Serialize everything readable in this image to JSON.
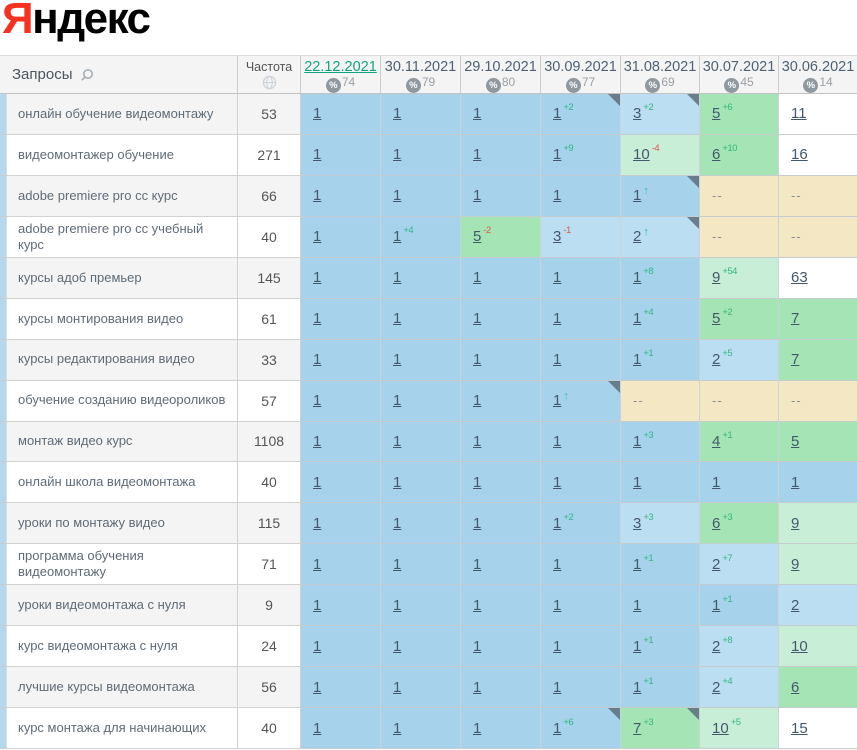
{
  "logo": {
    "first_letter": "Я",
    "rest": "ндекс"
  },
  "colors": {
    "brand_red": "#f5321f",
    "selected_date": "#12a27e",
    "pos_1_bg": "#a6d2ec",
    "pos_2_3_bg": "#bcdef3",
    "pos_4_7_bg": "#a5e4b5",
    "pos_8_10_bg": "#c9eed8",
    "pos_11_plus_bg": "#ffffff",
    "not_ranked_bg": "#f4e7c3",
    "change_up": "#2fb87c",
    "change_down": "#e0564b",
    "entered_arrow": "#2cc0a8"
  },
  "header": {
    "queries_label": "Запросы",
    "frequency_label": "Частота",
    "dates": [
      {
        "label": "22.12.2021",
        "count": "74",
        "selected": true
      },
      {
        "label": "30.11.2021",
        "count": "79",
        "selected": false
      },
      {
        "label": "29.10.2021",
        "count": "80",
        "selected": false
      },
      {
        "label": "30.09.2021",
        "count": "77",
        "selected": false
      },
      {
        "label": "31.08.2021",
        "count": "69",
        "selected": false
      },
      {
        "label": "30.07.2021",
        "count": "45",
        "selected": false
      },
      {
        "label": "30.06.2021",
        "count": "14",
        "selected": false
      }
    ]
  },
  "rows": [
    {
      "query": "онлайн обучение видеомонтажу",
      "frequency": "53",
      "cells": [
        {
          "pos": "1"
        },
        {
          "pos": "1"
        },
        {
          "pos": "1"
        },
        {
          "pos": "1",
          "change": "+2",
          "note": true
        },
        {
          "pos": "3",
          "change": "+2",
          "note": true
        },
        {
          "pos": "5",
          "change": "+6"
        },
        {
          "pos": "11"
        }
      ]
    },
    {
      "query": "видеомонтажер обучение",
      "frequency": "271",
      "cells": [
        {
          "pos": "1"
        },
        {
          "pos": "1"
        },
        {
          "pos": "1"
        },
        {
          "pos": "1",
          "change": "+9"
        },
        {
          "pos": "10",
          "change": "-4"
        },
        {
          "pos": "6",
          "change": "+10"
        },
        {
          "pos": "16"
        }
      ]
    },
    {
      "query": "adobe premiere pro cc курс",
      "frequency": "66",
      "cells": [
        {
          "pos": "1"
        },
        {
          "pos": "1"
        },
        {
          "pos": "1"
        },
        {
          "pos": "1"
        },
        {
          "pos": "1",
          "entered": true,
          "note": true
        },
        {
          "pos": "--"
        },
        {
          "pos": "--"
        }
      ]
    },
    {
      "query": "adobe premiere pro cc учебный курс",
      "frequency": "40",
      "cells": [
        {
          "pos": "1"
        },
        {
          "pos": "1",
          "change": "+4"
        },
        {
          "pos": "5",
          "change": "-2"
        },
        {
          "pos": "3",
          "change": "-1"
        },
        {
          "pos": "2",
          "entered": true,
          "note": true
        },
        {
          "pos": "--"
        },
        {
          "pos": "--"
        }
      ]
    },
    {
      "query": "курсы адоб премьер",
      "frequency": "145",
      "cells": [
        {
          "pos": "1"
        },
        {
          "pos": "1"
        },
        {
          "pos": "1"
        },
        {
          "pos": "1"
        },
        {
          "pos": "1",
          "change": "+8"
        },
        {
          "pos": "9",
          "change": "+54"
        },
        {
          "pos": "63"
        }
      ]
    },
    {
      "query": "курсы монтирования видео",
      "frequency": "61",
      "cells": [
        {
          "pos": "1"
        },
        {
          "pos": "1"
        },
        {
          "pos": "1"
        },
        {
          "pos": "1"
        },
        {
          "pos": "1",
          "change": "+4"
        },
        {
          "pos": "5",
          "change": "+2"
        },
        {
          "pos": "7"
        }
      ]
    },
    {
      "query": "курсы редактирования видео",
      "frequency": "33",
      "cells": [
        {
          "pos": "1"
        },
        {
          "pos": "1"
        },
        {
          "pos": "1"
        },
        {
          "pos": "1"
        },
        {
          "pos": "1",
          "change": "+1"
        },
        {
          "pos": "2",
          "change": "+5"
        },
        {
          "pos": "7"
        }
      ]
    },
    {
      "query": "обучение созданию видеороликов",
      "frequency": "57",
      "cells": [
        {
          "pos": "1"
        },
        {
          "pos": "1"
        },
        {
          "pos": "1"
        },
        {
          "pos": "1",
          "entered": true,
          "note": true
        },
        {
          "pos": "--"
        },
        {
          "pos": "--"
        },
        {
          "pos": "--"
        }
      ]
    },
    {
      "query": "монтаж видео курс",
      "frequency": "1108",
      "cells": [
        {
          "pos": "1"
        },
        {
          "pos": "1"
        },
        {
          "pos": "1"
        },
        {
          "pos": "1"
        },
        {
          "pos": "1",
          "change": "+3"
        },
        {
          "pos": "4",
          "change": "+1"
        },
        {
          "pos": "5"
        }
      ]
    },
    {
      "query": "онлайн школа видеомонтажа",
      "frequency": "40",
      "cells": [
        {
          "pos": "1"
        },
        {
          "pos": "1"
        },
        {
          "pos": "1"
        },
        {
          "pos": "1"
        },
        {
          "pos": "1"
        },
        {
          "pos": "1"
        },
        {
          "pos": "1"
        }
      ]
    },
    {
      "query": "уроки по монтажу видео",
      "frequency": "115",
      "cells": [
        {
          "pos": "1"
        },
        {
          "pos": "1"
        },
        {
          "pos": "1"
        },
        {
          "pos": "1",
          "change": "+2"
        },
        {
          "pos": "3",
          "change": "+3"
        },
        {
          "pos": "6",
          "change": "+3"
        },
        {
          "pos": "9"
        }
      ]
    },
    {
      "query": "программа обучения видеомонтажу",
      "frequency": "71",
      "cells": [
        {
          "pos": "1"
        },
        {
          "pos": "1"
        },
        {
          "pos": "1"
        },
        {
          "pos": "1"
        },
        {
          "pos": "1",
          "change": "+1"
        },
        {
          "pos": "2",
          "change": "+7"
        },
        {
          "pos": "9"
        }
      ]
    },
    {
      "query": "уроки видеомонтажа с нуля",
      "frequency": "9",
      "cells": [
        {
          "pos": "1"
        },
        {
          "pos": "1"
        },
        {
          "pos": "1"
        },
        {
          "pos": "1"
        },
        {
          "pos": "1"
        },
        {
          "pos": "1",
          "change": "+1"
        },
        {
          "pos": "2"
        }
      ]
    },
    {
      "query": "курс видеомонтажа с нуля",
      "frequency": "24",
      "cells": [
        {
          "pos": "1"
        },
        {
          "pos": "1"
        },
        {
          "pos": "1"
        },
        {
          "pos": "1"
        },
        {
          "pos": "1",
          "change": "+1"
        },
        {
          "pos": "2",
          "change": "+8"
        },
        {
          "pos": "10"
        }
      ]
    },
    {
      "query": "лучшие курсы видеомонтажа",
      "frequency": "56",
      "cells": [
        {
          "pos": "1"
        },
        {
          "pos": "1"
        },
        {
          "pos": "1"
        },
        {
          "pos": "1"
        },
        {
          "pos": "1",
          "change": "+1"
        },
        {
          "pos": "2",
          "change": "+4"
        },
        {
          "pos": "6"
        }
      ]
    },
    {
      "query": "курс монтажа для начинающих",
      "frequency": "40",
      "cells": [
        {
          "pos": "1"
        },
        {
          "pos": "1"
        },
        {
          "pos": "1"
        },
        {
          "pos": "1",
          "change": "+6",
          "note": true
        },
        {
          "pos": "7",
          "change": "+3",
          "note": true
        },
        {
          "pos": "10",
          "change": "+5"
        },
        {
          "pos": "15"
        }
      ]
    }
  ]
}
